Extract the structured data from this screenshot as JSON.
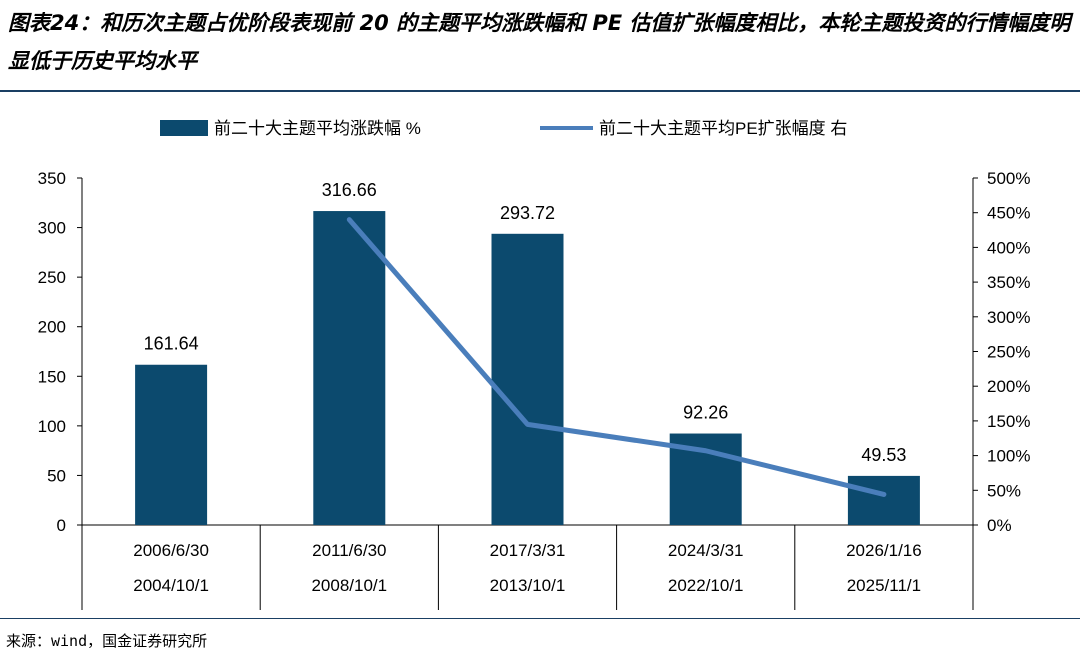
{
  "figure": {
    "title": "图表24：和历次主题占优阶段表现前 20 的主题平均涨跌幅和 PE 估值扩张幅度相比，本轮主题投资的行情幅度明显低于历史平均水平",
    "source": "来源：wind，国金证券研究所"
  },
  "colors": {
    "bar": "#0c4a6e",
    "line": "#4a7ebb",
    "rule": "#1a3f63",
    "axis": "#000000"
  },
  "chart_data": {
    "type": "bar",
    "categories": [
      [
        "2006/6/30",
        "2004/10/1"
      ],
      [
        "2011/6/30",
        "2008/10/1"
      ],
      [
        "2017/3/31",
        "2013/10/1"
      ],
      [
        "2024/3/31",
        "2022/10/1"
      ],
      [
        "2026/1/16",
        "2025/11/1"
      ]
    ],
    "series": [
      {
        "name": "前二十大主题平均涨跌幅 %",
        "type": "bar",
        "axis": "left",
        "values": [
          161.64,
          316.66,
          293.72,
          92.26,
          49.53
        ]
      },
      {
        "name": "前二十大主题平均PE扩张幅度 右",
        "type": "line",
        "axis": "right",
        "values": [
          null,
          4.4,
          1.45,
          1.07,
          0.44
        ]
      }
    ],
    "data_labels": [
      "161.64",
      "316.66",
      "293.72",
      "92.26",
      "49.53"
    ],
    "y_left": {
      "ylim": [
        0,
        350
      ],
      "ticks": [
        "0",
        "50",
        "100",
        "150",
        "200",
        "250",
        "300",
        "350"
      ]
    },
    "y_right": {
      "ylim": [
        0,
        5
      ],
      "ticks": [
        "0%",
        "50%",
        "100%",
        "150%",
        "200%",
        "250%",
        "300%",
        "350%",
        "400%",
        "450%",
        "500%"
      ]
    },
    "legend": "top-center",
    "grid": false
  }
}
